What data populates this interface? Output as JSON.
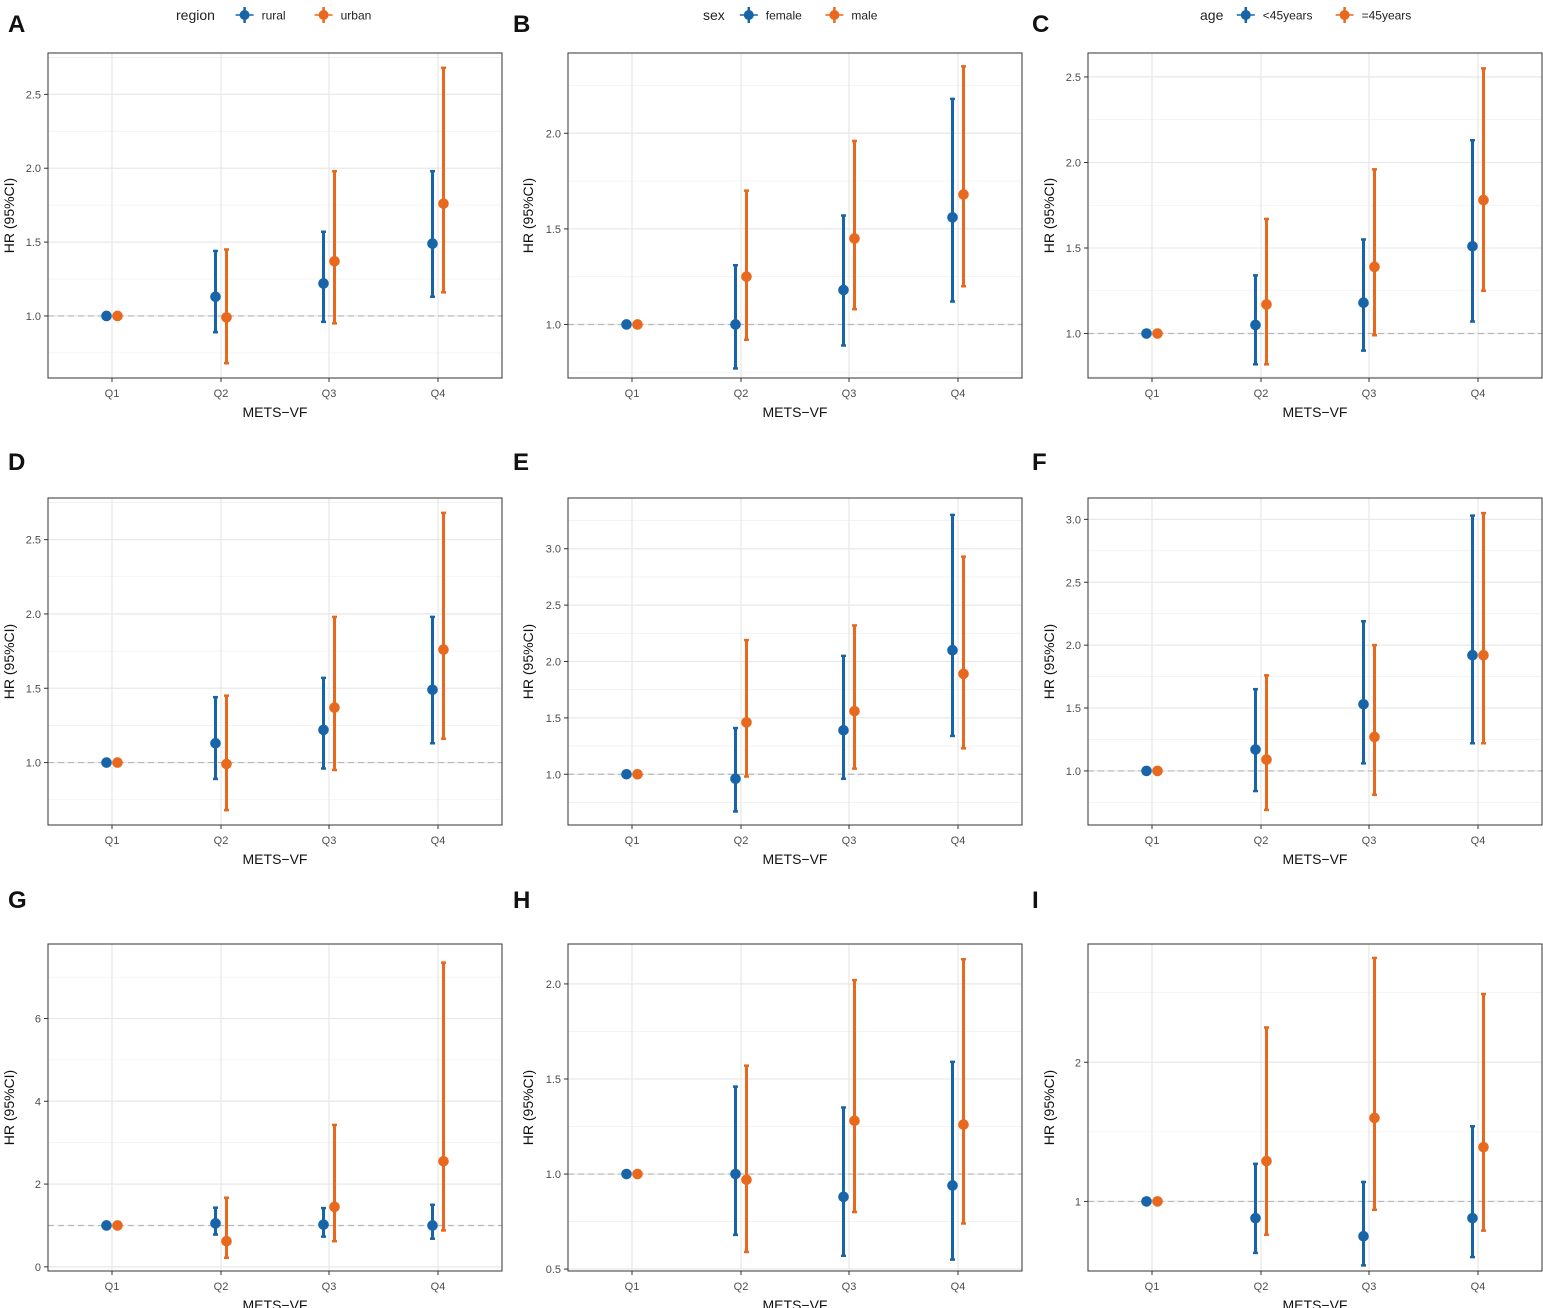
{
  "colors": {
    "series_a": "#1765a8",
    "series_b": "#e8691e",
    "grid": "#e9e9e9",
    "refline": "#b8b8b8",
    "frame": "#333333"
  },
  "legends": [
    {
      "title": "region",
      "items": [
        "rural",
        "urban"
      ]
    },
    {
      "title": "sex",
      "items": [
        "female",
        "male"
      ]
    },
    {
      "title": "age",
      "items": [
        "<45years",
        "=45years"
      ]
    }
  ],
  "chart_data": [
    {
      "panel": "A",
      "type": "errorbar",
      "legend_title": "region",
      "xlabel": "METS−VF",
      "ylabel": "HR (95%CI)",
      "categories": [
        "Q1",
        "Q2",
        "Q3",
        "Q4"
      ],
      "ylim": [
        0.58,
        2.78
      ],
      "yticks": [
        1.0,
        1.5,
        2.0,
        2.5
      ],
      "tick_labels": [
        "1.0",
        "1.5",
        "2.0",
        "2.5"
      ],
      "minor_ticks": [
        0.75,
        1.25,
        1.75,
        2.25,
        2.75
      ],
      "ref": 1.0,
      "series": [
        {
          "name": "rural",
          "est": [
            1.0,
            1.13,
            1.22,
            1.49
          ],
          "lo": [
            1.0,
            0.89,
            0.96,
            1.13
          ],
          "hi": [
            1.0,
            1.44,
            1.57,
            1.98
          ]
        },
        {
          "name": "urban",
          "est": [
            1.0,
            0.99,
            1.37,
            1.76
          ],
          "lo": [
            1.0,
            0.68,
            0.95,
            1.16
          ],
          "hi": [
            1.0,
            1.45,
            1.98,
            2.68
          ]
        }
      ]
    },
    {
      "panel": "B",
      "type": "errorbar",
      "legend_title": "sex",
      "xlabel": "METS−VF",
      "ylabel": "HR (95%CI)",
      "categories": [
        "Q1",
        "Q2",
        "Q3",
        "Q4"
      ],
      "ylim": [
        0.72,
        2.42
      ],
      "yticks": [
        1.0,
        1.5,
        2.0
      ],
      "tick_labels": [
        "1.0",
        "1.5",
        "2.0"
      ],
      "minor_ticks": [
        0.75,
        1.25,
        1.75,
        2.25
      ],
      "ref": 1.0,
      "series": [
        {
          "name": "female",
          "est": [
            1.0,
            1.0,
            1.18,
            1.56
          ],
          "lo": [
            1.0,
            0.77,
            0.89,
            1.12
          ],
          "hi": [
            1.0,
            1.31,
            1.57,
            2.18
          ]
        },
        {
          "name": "male",
          "est": [
            1.0,
            1.25,
            1.45,
            1.68
          ],
          "lo": [
            1.0,
            0.92,
            1.08,
            1.2
          ],
          "hi": [
            1.0,
            1.7,
            1.96,
            2.35
          ]
        }
      ]
    },
    {
      "panel": "C",
      "type": "errorbar",
      "legend_title": "age",
      "xlabel": "METS−VF",
      "ylabel": "HR (95%CI)",
      "categories": [
        "Q1",
        "Q2",
        "Q3",
        "Q4"
      ],
      "ylim": [
        0.74,
        2.64
      ],
      "yticks": [
        1.0,
        1.5,
        2.0,
        2.5
      ],
      "tick_labels": [
        "1.0",
        "1.5",
        "2.0",
        "2.5"
      ],
      "minor_ticks": [
        0.75,
        1.25,
        1.75,
        2.25
      ],
      "ref": 1.0,
      "series": [
        {
          "name": "<45years",
          "est": [
            1.0,
            1.05,
            1.18,
            1.51
          ],
          "lo": [
            1.0,
            0.82,
            0.9,
            1.07
          ],
          "hi": [
            1.0,
            1.34,
            1.55,
            2.13
          ]
        },
        {
          "name": "=45years",
          "est": [
            1.0,
            1.17,
            1.39,
            1.78
          ],
          "lo": [
            1.0,
            0.82,
            0.99,
            1.25
          ],
          "hi": [
            1.0,
            1.67,
            1.96,
            2.55
          ]
        }
      ]
    },
    {
      "panel": "D",
      "type": "errorbar",
      "legend_title": "region",
      "xlabel": "METS−VF",
      "ylabel": "HR (95%CI)",
      "categories": [
        "Q1",
        "Q2",
        "Q3",
        "Q4"
      ],
      "ylim": [
        0.58,
        2.78
      ],
      "yticks": [
        1.0,
        1.5,
        2.0,
        2.5
      ],
      "tick_labels": [
        "1.0",
        "1.5",
        "2.0",
        "2.5"
      ],
      "minor_ticks": [
        0.75,
        1.25,
        1.75,
        2.25,
        2.75
      ],
      "ref": 1.0,
      "series": [
        {
          "name": "rural",
          "est": [
            1.0,
            1.13,
            1.22,
            1.49
          ],
          "lo": [
            1.0,
            0.89,
            0.96,
            1.13
          ],
          "hi": [
            1.0,
            1.44,
            1.57,
            1.98
          ]
        },
        {
          "name": "urban",
          "est": [
            1.0,
            0.99,
            1.37,
            1.76
          ],
          "lo": [
            1.0,
            0.68,
            0.95,
            1.16
          ],
          "hi": [
            1.0,
            1.45,
            1.98,
            2.68
          ]
        }
      ]
    },
    {
      "panel": "E",
      "type": "errorbar",
      "legend_title": "sex",
      "xlabel": "METS−VF",
      "ylabel": "HR (95%CI)",
      "categories": [
        "Q1",
        "Q2",
        "Q3",
        "Q4"
      ],
      "ylim": [
        0.55,
        3.45
      ],
      "yticks": [
        1.0,
        1.5,
        2.0,
        2.5,
        3.0
      ],
      "tick_labels": [
        "1.0",
        "1.5",
        "2.0",
        "2.5",
        "3.0"
      ],
      "minor_ticks": [
        0.75,
        1.25,
        1.75,
        2.25,
        2.75,
        3.25
      ],
      "ref": 1.0,
      "series": [
        {
          "name": "female",
          "est": [
            1.0,
            0.96,
            1.39,
            2.1
          ],
          "lo": [
            1.0,
            0.67,
            0.96,
            1.34
          ],
          "hi": [
            1.0,
            1.41,
            2.05,
            3.3
          ]
        },
        {
          "name": "male",
          "est": [
            1.0,
            1.46,
            1.56,
            1.89
          ],
          "lo": [
            1.0,
            0.98,
            1.05,
            1.23
          ],
          "hi": [
            1.0,
            2.19,
            2.32,
            2.93
          ]
        }
      ]
    },
    {
      "panel": "F",
      "type": "errorbar",
      "legend_title": "age",
      "xlabel": "METS−VF",
      "ylabel": "HR (95%CI)",
      "categories": [
        "Q1",
        "Q2",
        "Q3",
        "Q4"
      ],
      "ylim": [
        0.57,
        3.17
      ],
      "yticks": [
        1.0,
        1.5,
        2.0,
        2.5,
        3.0
      ],
      "tick_labels": [
        "1.0",
        "1.5",
        "2.0",
        "2.5",
        "3.0"
      ],
      "minor_ticks": [
        0.75,
        1.25,
        1.75,
        2.25,
        2.75
      ],
      "ref": 1.0,
      "series": [
        {
          "name": "<45years",
          "est": [
            1.0,
            1.17,
            1.53,
            1.92
          ],
          "lo": [
            1.0,
            0.84,
            1.06,
            1.22
          ],
          "hi": [
            1.0,
            1.65,
            2.19,
            3.03
          ]
        },
        {
          "name": "=45years",
          "est": [
            1.0,
            1.09,
            1.27,
            1.92
          ],
          "lo": [
            1.0,
            0.69,
            0.81,
            1.22
          ],
          "hi": [
            1.0,
            1.76,
            2.0,
            3.05
          ]
        }
      ]
    },
    {
      "panel": "G",
      "type": "errorbar",
      "legend_title": "region",
      "xlabel": "METS−VF",
      "ylabel": "HR (95%CI)",
      "categories": [
        "Q1",
        "Q2",
        "Q3",
        "Q4"
      ],
      "ylim": [
        -0.1,
        7.8
      ],
      "yticks": [
        0,
        2,
        4,
        6
      ],
      "tick_labels": [
        "0",
        "2",
        "4",
        "6"
      ],
      "minor_ticks": [
        1,
        3,
        5,
        7
      ],
      "ref": 1.0,
      "series": [
        {
          "name": "rural",
          "est": [
            1.0,
            1.05,
            1.02,
            1.0
          ],
          "lo": [
            1.0,
            0.78,
            0.73,
            0.68
          ],
          "hi": [
            1.0,
            1.43,
            1.42,
            1.5
          ]
        },
        {
          "name": "urban",
          "est": [
            1.0,
            0.62,
            1.45,
            2.55
          ],
          "lo": [
            1.0,
            0.22,
            0.62,
            0.88
          ],
          "hi": [
            1.0,
            1.67,
            3.43,
            7.35
          ]
        }
      ]
    },
    {
      "panel": "H",
      "type": "errorbar",
      "legend_title": "sex",
      "xlabel": "METS−VF",
      "ylabel": "HR (95%CI)",
      "categories": [
        "Q1",
        "Q2",
        "Q3",
        "Q4"
      ],
      "ylim": [
        0.49,
        2.21
      ],
      "yticks": [
        0.5,
        1.0,
        1.5,
        2.0
      ],
      "tick_labels": [
        "0.5",
        "1.0",
        "1.5",
        "2.0"
      ],
      "minor_ticks": [
        0.75,
        1.25,
        1.75
      ],
      "ref": 1.0,
      "series": [
        {
          "name": "female",
          "est": [
            1.0,
            1.0,
            0.88,
            0.94
          ],
          "lo": [
            1.0,
            0.68,
            0.57,
            0.55
          ],
          "hi": [
            1.0,
            1.46,
            1.35,
            1.59
          ]
        },
        {
          "name": "male",
          "est": [
            1.0,
            0.97,
            1.28,
            1.26
          ],
          "lo": [
            1.0,
            0.59,
            0.8,
            0.74
          ],
          "hi": [
            1.0,
            1.57,
            2.02,
            2.13
          ]
        }
      ]
    },
    {
      "panel": "I",
      "type": "errorbar",
      "legend_title": "age",
      "xlabel": "METS−VF",
      "ylabel": "HR (95%CI)",
      "categories": [
        "Q1",
        "Q2",
        "Q3",
        "Q4"
      ],
      "ylim": [
        0.5,
        2.85
      ],
      "yticks": [
        1,
        2
      ],
      "tick_labels": [
        "1",
        "2"
      ],
      "minor_ticks": [
        0.5,
        1.5,
        2.5
      ],
      "ref": 1.0,
      "series": [
        {
          "name": "<45years",
          "est": [
            1.0,
            0.88,
            0.75,
            0.88
          ],
          "lo": [
            1.0,
            0.63,
            0.54,
            0.6
          ],
          "hi": [
            1.0,
            1.27,
            1.14,
            1.54
          ]
        },
        {
          "name": "=45years",
          "est": [
            1.0,
            1.29,
            1.6,
            1.39
          ],
          "lo": [
            1.0,
            0.76,
            0.94,
            0.79
          ],
          "hi": [
            1.0,
            2.25,
            2.75,
            2.49
          ]
        }
      ]
    }
  ]
}
